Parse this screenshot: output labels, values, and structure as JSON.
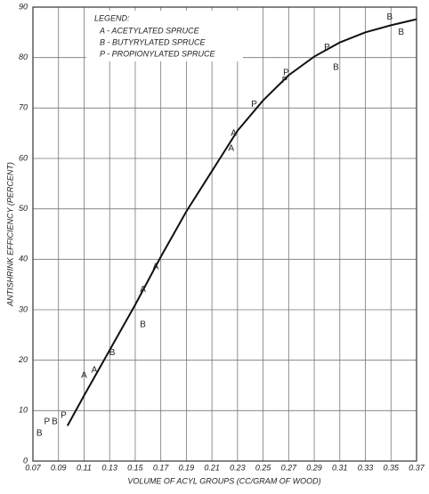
{
  "chart_data": {
    "type": "scatter",
    "xlabel": "VOLUME OF ACYL GROUPS (CC/GRAM OF WOOD)",
    "ylabel": "ANTISHRINK EFFICIENCY (PERCENT)",
    "legend_title": "LEGEND:",
    "legend": "upper left",
    "grid": true,
    "xlim": [
      0.07,
      0.37
    ],
    "ylim": [
      0,
      90
    ],
    "xticks": [
      0.07,
      0.09,
      0.11,
      0.13,
      0.15,
      0.17,
      0.19,
      0.21,
      0.23,
      0.25,
      0.27,
      0.29,
      0.31,
      0.33,
      0.35,
      0.37
    ],
    "yticks": [
      0,
      10,
      20,
      30,
      40,
      50,
      60,
      70,
      80,
      90
    ],
    "curve": {
      "color": "#111111",
      "x": [
        0.097,
        0.11,
        0.13,
        0.15,
        0.17,
        0.19,
        0.21,
        0.23,
        0.25,
        0.27,
        0.29,
        0.31,
        0.33,
        0.35,
        0.37
      ],
      "y": [
        7,
        13,
        22,
        31,
        40.5,
        49.5,
        57.5,
        65.5,
        71.5,
        76.5,
        80.2,
        83,
        85,
        86.4,
        87.6
      ]
    },
    "series": [
      {
        "name": "A - ACETYLATED SPRUCE",
        "marker": "A",
        "color": "#222222",
        "x": [
          0.11,
          0.118,
          0.156,
          0.166,
          0.227,
          0.225
        ],
        "values": [
          17,
          18,
          34,
          38.5,
          65,
          62
        ]
      },
      {
        "name": "B - BUTYRYLATED SPRUCE",
        "marker": "B",
        "color": "#222222",
        "x": [
          0.075,
          0.087,
          0.132,
          0.156,
          0.307,
          0.349,
          0.358
        ],
        "values": [
          5.5,
          7.8,
          21.5,
          27,
          78,
          88,
          85
        ]
      },
      {
        "name": "P - PROPIONYLATED SPRUCE",
        "marker": "P",
        "color": "#222222",
        "x": [
          0.081,
          0.094,
          0.243,
          0.268,
          0.267,
          0.3
        ],
        "values": [
          7.8,
          9,
          70.7,
          77,
          75.5,
          82
        ]
      }
    ]
  }
}
